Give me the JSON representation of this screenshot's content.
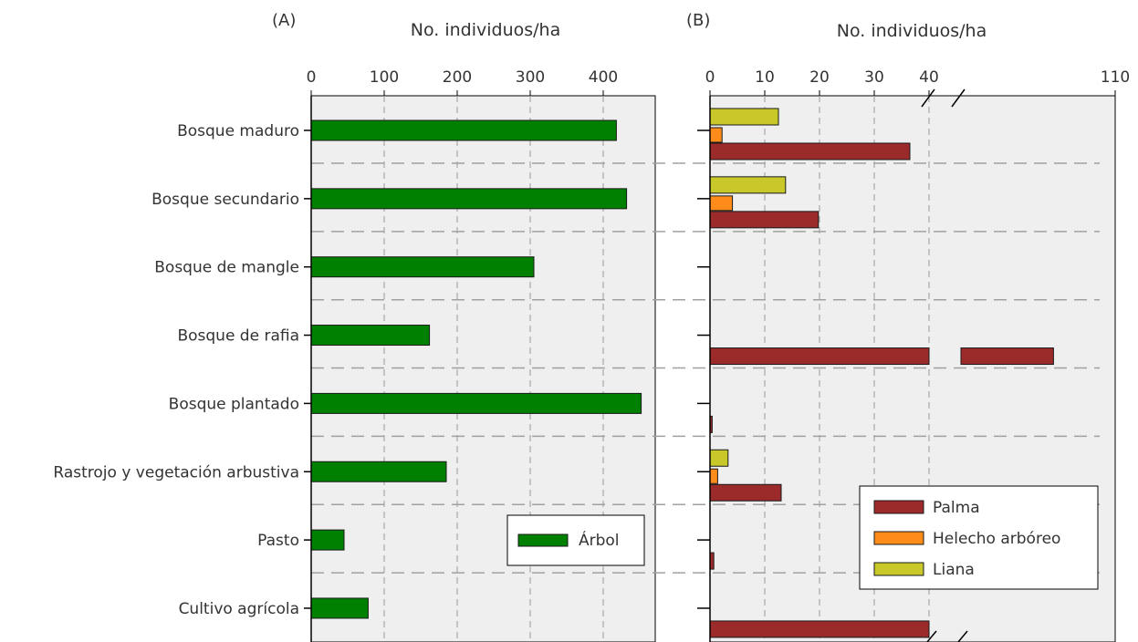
{
  "chart_data": [
    {
      "type": "bar",
      "orientation": "horizontal",
      "panel_label": "(A)",
      "xlabel": "No. individuos/ha",
      "xaxis_position": "top",
      "xlim": [
        0,
        470
      ],
      "xticks": [
        0,
        100,
        200,
        300,
        400
      ],
      "categories": [
        "Bosque maduro",
        "Bosque secundario",
        "Bosque de mangle",
        "Bosque de rafia",
        "Bosque plantado",
        "Rastrojo y vegetación arbustiva",
        "Pasto",
        "Cultivo agrícola"
      ],
      "series": [
        {
          "name": "Árbol",
          "color": "#008000",
          "values": [
            418,
            432,
            305,
            162,
            452,
            185,
            45,
            78
          ]
        }
      ],
      "grid": "vertical dashed",
      "legend_position": "bottom-right"
    },
    {
      "type": "bar",
      "orientation": "horizontal",
      "panel_label": "(B)",
      "xlabel": "No. individuos/ha",
      "xaxis_position": "top",
      "axis_break": {
        "from": 40,
        "to": 100
      },
      "xlim": [
        0,
        110
      ],
      "xticks": [
        0,
        10,
        20,
        30,
        40,
        110
      ],
      "categories": [
        "Bosque maduro",
        "Bosque secundario",
        "Bosque de mangle",
        "Bosque de rafia",
        "Bosque plantado",
        "Rastrojo y vegetación arbustiva",
        "Pasto",
        "Cultivo agrícola"
      ],
      "series": [
        {
          "name": "Palma",
          "color": "#9b2a2a",
          "values": [
            36.5,
            19.8,
            0,
            106,
            0.4,
            13,
            0.7,
            40
          ]
        },
        {
          "name": "Helecho arbóreo",
          "color": "#ff8c1a",
          "values": [
            2.2,
            4.1,
            0,
            0,
            0,
            1.4,
            0,
            0
          ]
        },
        {
          "name": "Liana",
          "color": "#c8c82a",
          "values": [
            12.5,
            13.8,
            0,
            0,
            0,
            3.3,
            0,
            0
          ]
        }
      ],
      "grid": "vertical dashed",
      "legend_position": "bottom-right"
    }
  ]
}
